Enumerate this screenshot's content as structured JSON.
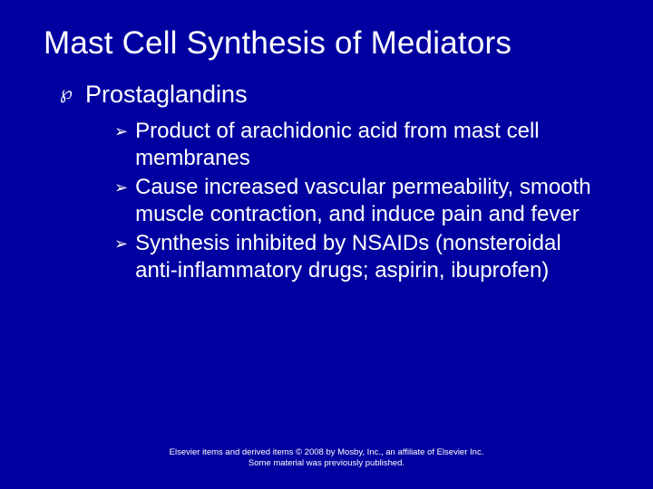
{
  "background_color": "#0000a0",
  "text_color": "#ffffff",
  "title": {
    "text": "Mast Cell Synthesis of Mediators",
    "fontsize": 35
  },
  "topic": {
    "bullet": "℘",
    "text": "Prostaglandins",
    "fontsize": 27
  },
  "sub_bullet": "➢",
  "sub_items": [
    "Product of arachidonic acid from mast cell membranes",
    "Cause increased vascular permeability, smooth muscle contraction, and induce pain and fever",
    "Synthesis inhibited by NSAIDs (nonsteroidal anti-inflammatory drugs; aspirin, ibuprofen)"
  ],
  "sub_fontsize": 24,
  "footer": {
    "line1": "Elsevier items and derived items © 2008 by Mosby, Inc., an affiliate of Elsevier Inc.",
    "line2": "Some material was previously published.",
    "fontsize": 9.5
  }
}
